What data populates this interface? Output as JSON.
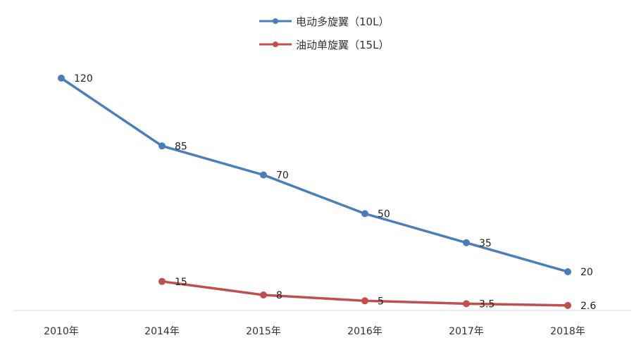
{
  "chart_data": {
    "type": "line",
    "title": "",
    "xlabel": "",
    "ylabel": "",
    "categories": [
      "2010年",
      "2014年",
      "2015年",
      "2016年",
      "2017年",
      "2018年"
    ],
    "series": [
      {
        "name": "电动多旋翼（10L）",
        "color": "#4a7ebb",
        "values": [
          120,
          85,
          70,
          50,
          35,
          20
        ],
        "labels": [
          "120",
          "85",
          "70",
          "50",
          "35",
          "20"
        ]
      },
      {
        "name": "油动单旋翼（15L）",
        "color": "#c0504d",
        "values": [
          null,
          15,
          8,
          5,
          3.5,
          2.6
        ],
        "labels": [
          "",
          "15",
          "8",
          "5",
          "3.5",
          "2.6"
        ]
      }
    ],
    "ylim": [
      0,
      132
    ],
    "grid": false,
    "legend": "top-center"
  }
}
